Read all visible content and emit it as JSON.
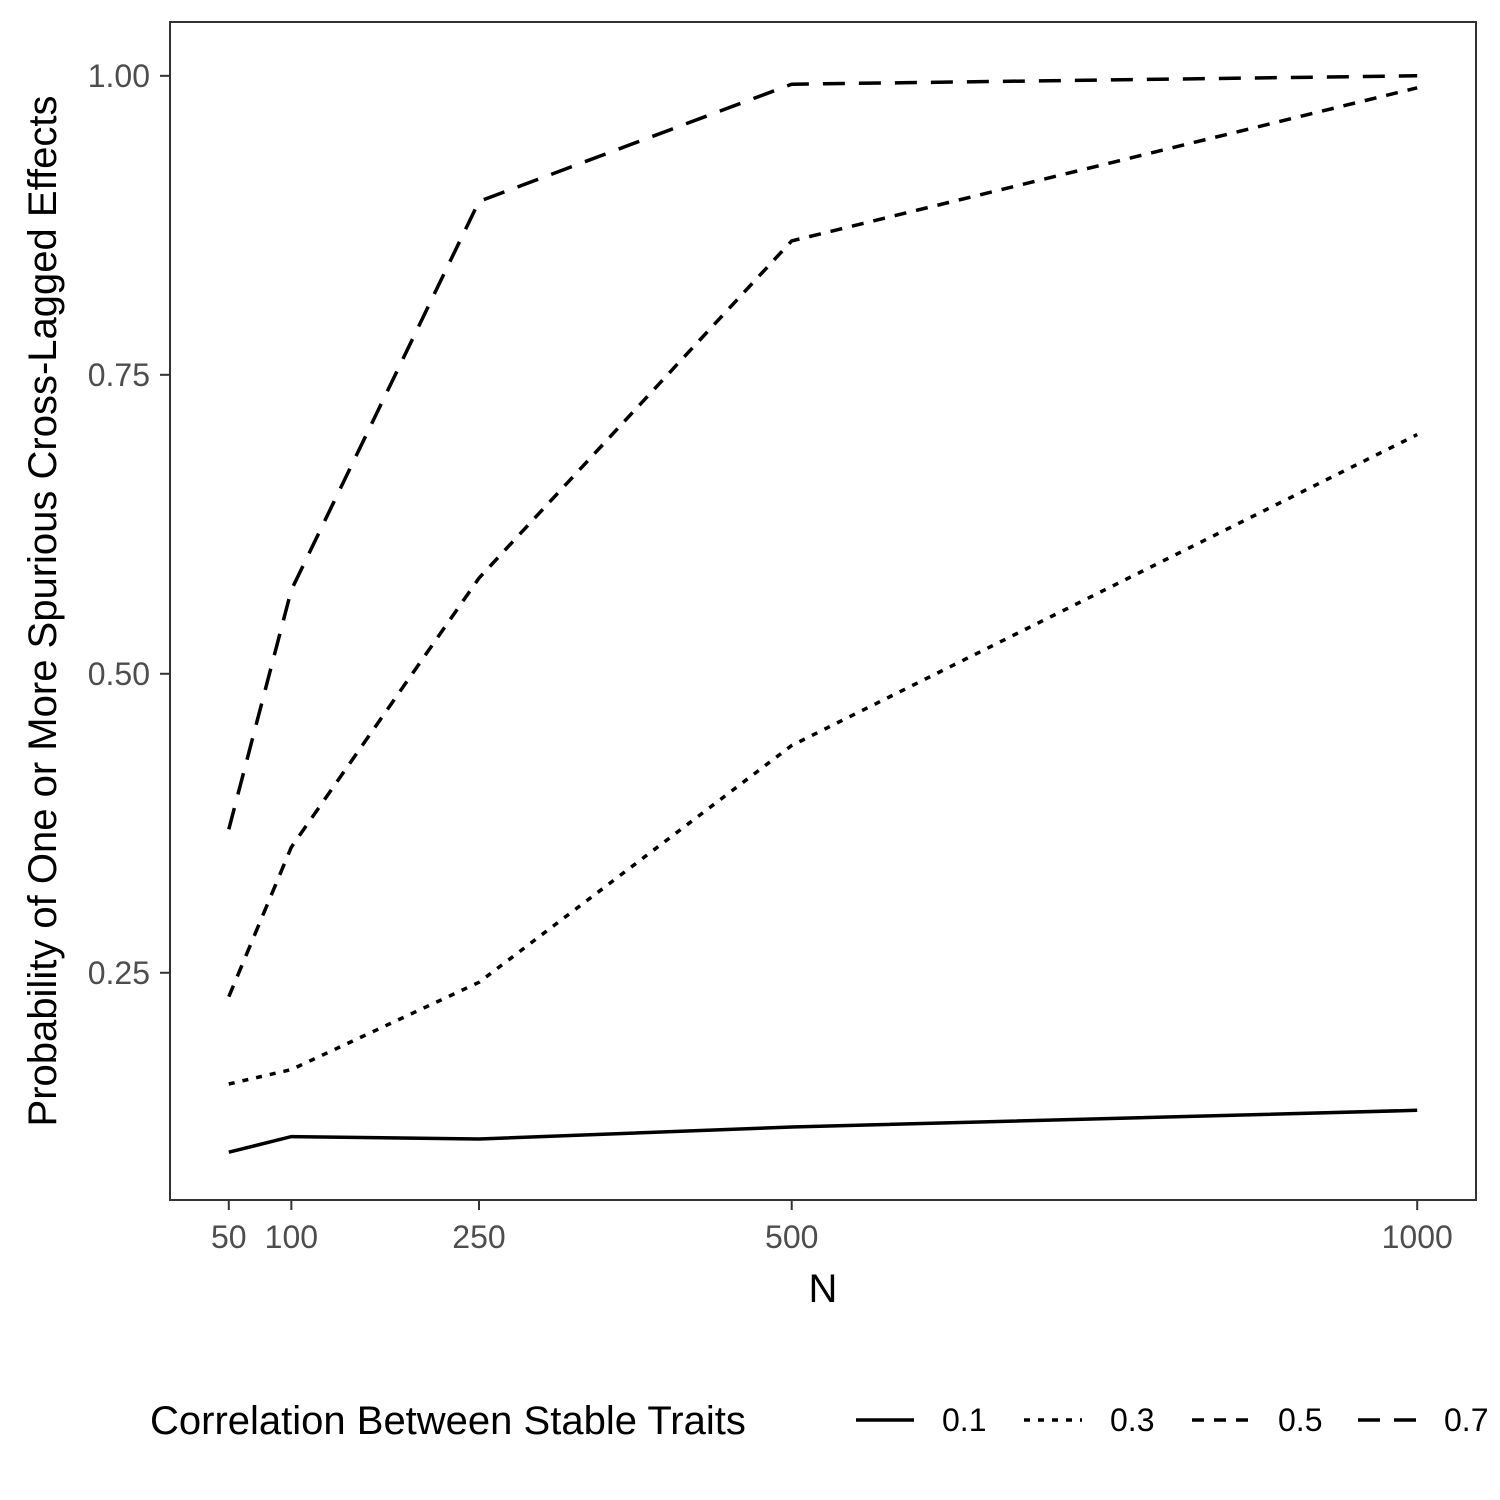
{
  "chart_data": {
    "type": "line",
    "xlabel": "N",
    "ylabel": "Probability of One or More Spurious Cross-Lagged Effects",
    "x": [
      50,
      100,
      250,
      500,
      1000
    ],
    "xticks": [
      50,
      100,
      250,
      500,
      1000
    ],
    "yticks": [
      0.25,
      0.5,
      0.75,
      1.0
    ],
    "ytick_labels": [
      "0.25",
      "0.50",
      "0.75",
      "1.00"
    ],
    "xlim": [
      3,
      1047
    ],
    "ylim": [
      0.06,
      1.045
    ],
    "grid": false,
    "legend": {
      "title": "Correlation Between Stable Traits",
      "position": "bottom"
    },
    "series": [
      {
        "name": "0.1",
        "linetype": "solid",
        "values": [
          0.1,
          0.113,
          0.111,
          0.121,
          0.135
        ]
      },
      {
        "name": "0.3",
        "linetype": "dotted",
        "values": [
          0.157,
          0.169,
          0.242,
          0.44,
          0.7
        ]
      },
      {
        "name": "0.5",
        "linetype": "dashed",
        "values": [
          0.23,
          0.355,
          0.58,
          0.862,
          0.99
        ]
      },
      {
        "name": "0.7",
        "linetype": "longdash",
        "values": [
          0.37,
          0.57,
          0.895,
          0.993,
          1.0
        ]
      }
    ]
  }
}
